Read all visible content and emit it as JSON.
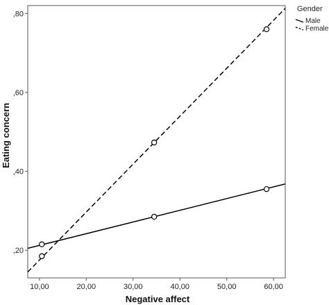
{
  "chart_data": {
    "type": "line",
    "xlabel": "Negative affect",
    "ylabel": "Eating concern",
    "xlim": [
      7.5,
      62.5
    ],
    "ylim": [
      0.13,
      0.82
    ],
    "x_ticks": [
      10,
      20,
      30,
      40,
      50,
      60
    ],
    "x_tick_labels": [
      "10,00",
      "20,00",
      "30,00",
      "40,00",
      "50,00",
      "60,00"
    ],
    "y_ticks": [
      0.2,
      0.4,
      0.6,
      0.8
    ],
    "y_tick_labels": [
      ",20",
      ",40",
      ",60",
      ",80"
    ],
    "grid": false,
    "legend": {
      "title": "Gender",
      "placement": "outside-right-top"
    },
    "series": [
      {
        "name": "Male",
        "style": "solid",
        "line": {
          "x": [
            7.5,
            62.5
          ],
          "y": [
            0.205,
            0.368
          ]
        },
        "points": {
          "x": [
            10.5,
            34.5,
            58.5
          ],
          "y": [
            0.215,
            0.285,
            0.355
          ]
        }
      },
      {
        "name": "Female",
        "style": "dashed",
        "line": {
          "x": [
            7.5,
            62.5
          ],
          "y": [
            0.145,
            0.813
          ]
        },
        "points": {
          "x": [
            10.5,
            34.5,
            58.5
          ],
          "y": [
            0.185,
            0.473,
            0.76
          ]
        }
      }
    ]
  }
}
